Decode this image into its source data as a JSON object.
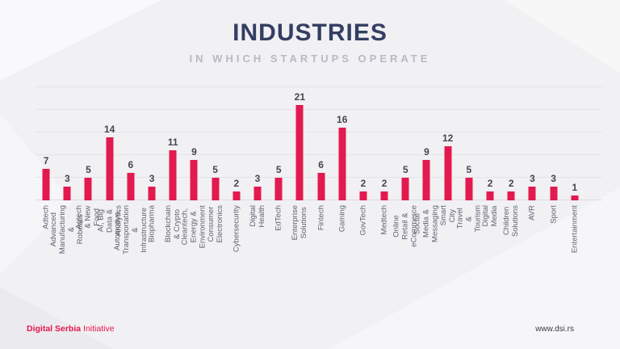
{
  "header": {
    "title": "INDUSTRIES",
    "subtitle": "IN WHICH STARTUPS OPERATE"
  },
  "footer": {
    "brand_bold": "Digital Serbia",
    "brand_regular": " Initiative",
    "website": "www.dsi.rs"
  },
  "colors": {
    "background": "#f1f0f3",
    "bar": "#e21a4f",
    "title": "#343e63",
    "subtitle": "#b7bac5",
    "value_label": "#45464e",
    "category_label": "#5f6270",
    "gridline": "#e4e3e8",
    "baseline": "#dddce2",
    "brand": "#e4174a",
    "website": "#3a3b45"
  },
  "chart_data": {
    "type": "bar",
    "title": "INDUSTRIES",
    "subtitle": "IN WHICH STARTUPS OPERATE",
    "categories": [
      "Adtech",
      "Advanced Manufacturing &\nRobotics",
      "Agtech & New Food",
      "AI, Big Data & Analytics",
      "Automotive, Transportation &\nInfrastructure",
      "Biopharma",
      "Blockchain & Crypto",
      "Cleantech, Energy &\nEnvironment",
      "Consumer Electronics",
      "Cybersecurity",
      "Digital Health",
      "EdTech",
      "Enterprise Solutions",
      "Fintech",
      "Gaming",
      "GovTech",
      "Medtech",
      "Online Retail & eCommerce",
      "Social Media & Messaging",
      "Smart City",
      "Travel & Tourism",
      "Digital Media",
      "Children Solutions",
      "AVR",
      "Sport",
      "Entertainment"
    ],
    "values": [
      7,
      3,
      5,
      14,
      6,
      3,
      11,
      9,
      5,
      2,
      3,
      5,
      21,
      6,
      16,
      2,
      2,
      5,
      9,
      12,
      5,
      2,
      2,
      3,
      3,
      1
    ],
    "xlabel": "",
    "ylabel": "",
    "ylim": [
      0,
      25
    ],
    "gridline_step": 5,
    "grid": "horizontal",
    "value_labels": true,
    "legend": false,
    "category_label_rotation": "vertical-bottom-to-top"
  }
}
